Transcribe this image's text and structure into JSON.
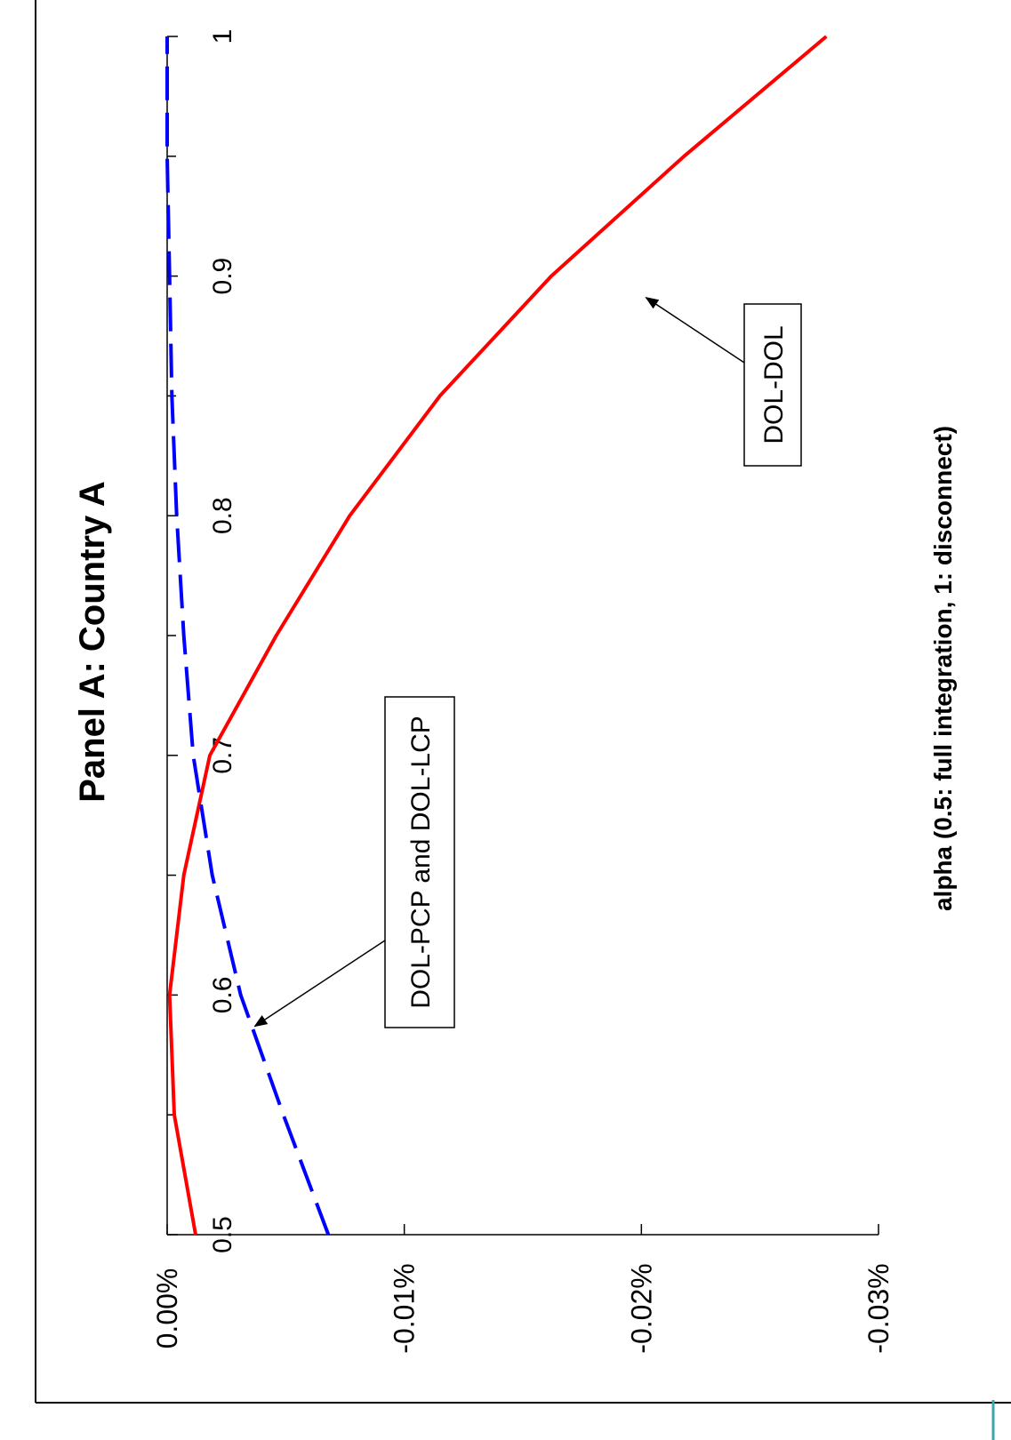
{
  "chart_data": {
    "type": "line",
    "orientation": "rotated-90-clockwise",
    "title": "Panel A: Country A",
    "xlabel": "alpha (0.5: full integration, 1: disconnect)",
    "ylabel": "",
    "xlim": [
      0.5,
      1.0
    ],
    "ylim": [
      -0.03,
      0.0
    ],
    "x_tick_values": [
      0.5,
      0.6,
      0.7,
      0.8,
      0.9,
      1.0
    ],
    "x_tick_labels": [
      "0.5",
      "0.6",
      "0.7",
      "0.8",
      "0.9",
      "1"
    ],
    "x_minor_ticks": [
      0.55,
      0.65,
      0.75,
      0.85,
      0.95
    ],
    "y_tick_values": [
      0.0,
      -0.01,
      -0.02,
      -0.03
    ],
    "y_tick_labels": [
      "0.00%",
      "-0.01%",
      "-0.02%",
      "-0.03%"
    ],
    "grid": false,
    "series": [
      {
        "color": "#ff0000",
        "style": "solid",
        "x": [
          0.5,
          0.55,
          0.6,
          0.65,
          0.7,
          0.75,
          0.8,
          0.85,
          0.9,
          0.95,
          1.0
        ],
        "y": [
          -0.0012,
          -0.0003,
          -0.0001,
          -0.0007,
          -0.0018,
          -0.0046,
          -0.0077,
          -0.0115,
          -0.0162,
          -0.0218,
          -0.0278
        ]
      },
      {
        "color": "#0000ff",
        "style": "dashed",
        "x": [
          0.5,
          0.55,
          0.6,
          0.65,
          0.7,
          0.75,
          0.8,
          0.85,
          0.9,
          0.95,
          1.0
        ],
        "y": [
          -0.0068,
          -0.0049,
          -0.0031,
          -0.0019,
          -0.0011,
          -0.0007,
          -0.0004,
          -0.0002,
          -0.0001,
          0.0,
          0.0
        ]
      }
    ],
    "annotations": [
      {
        "text": "DOL-PCP and DOL-LCP",
        "target_x": 0.587,
        "target_y": -0.0037
      },
      {
        "text": "DOL-DOL",
        "target_x": 0.891,
        "target_y": -0.0202
      }
    ]
  }
}
